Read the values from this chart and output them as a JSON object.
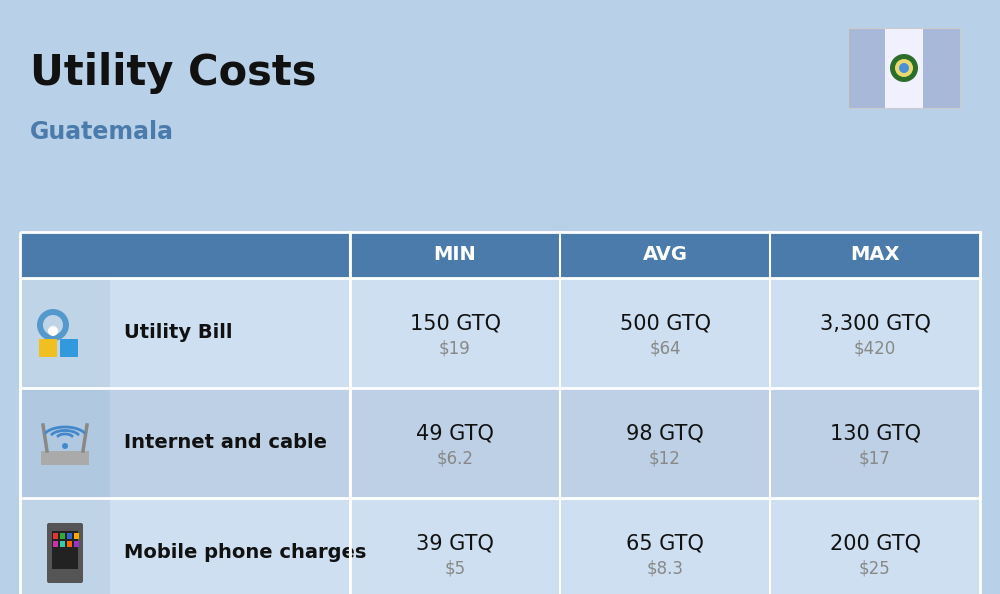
{
  "title": "Utility Costs",
  "subtitle": "Guatemala",
  "background_color": "#b8d0e8",
  "header_bg_color": "#4a7bab",
  "header_text_color": "#ffffff",
  "row_bg_color_1": "#cddff0",
  "row_bg_color_2": "#bdd0e5",
  "icon_col_bg_1": "#c0d4e8",
  "icon_col_bg_2": "#b0c8e0",
  "col_headers": [
    "MIN",
    "AVG",
    "MAX"
  ],
  "rows": [
    {
      "label": "Utility Bill",
      "min_gtq": "150 GTQ",
      "min_usd": "$19",
      "avg_gtq": "500 GTQ",
      "avg_usd": "$64",
      "max_gtq": "3,300 GTQ",
      "max_usd": "$420",
      "icon": "utility"
    },
    {
      "label": "Internet and cable",
      "min_gtq": "49 GTQ",
      "min_usd": "$6.2",
      "avg_gtq": "98 GTQ",
      "avg_usd": "$12",
      "max_gtq": "130 GTQ",
      "max_usd": "$17",
      "icon": "internet"
    },
    {
      "label": "Mobile phone charges",
      "min_gtq": "39 GTQ",
      "min_usd": "$5",
      "avg_gtq": "65 GTQ",
      "avg_usd": "$8.3",
      "max_gtq": "200 GTQ",
      "max_usd": "$25",
      "icon": "mobile"
    }
  ],
  "title_fontsize": 30,
  "subtitle_fontsize": 17,
  "header_fontsize": 14,
  "label_fontsize": 14,
  "value_fontsize": 15,
  "usd_fontsize": 12,
  "usd_color": "#888888",
  "label_color": "#111111",
  "value_color": "#111111",
  "flag_blue": "#a8b8d8",
  "flag_white": "#f0f0ff"
}
